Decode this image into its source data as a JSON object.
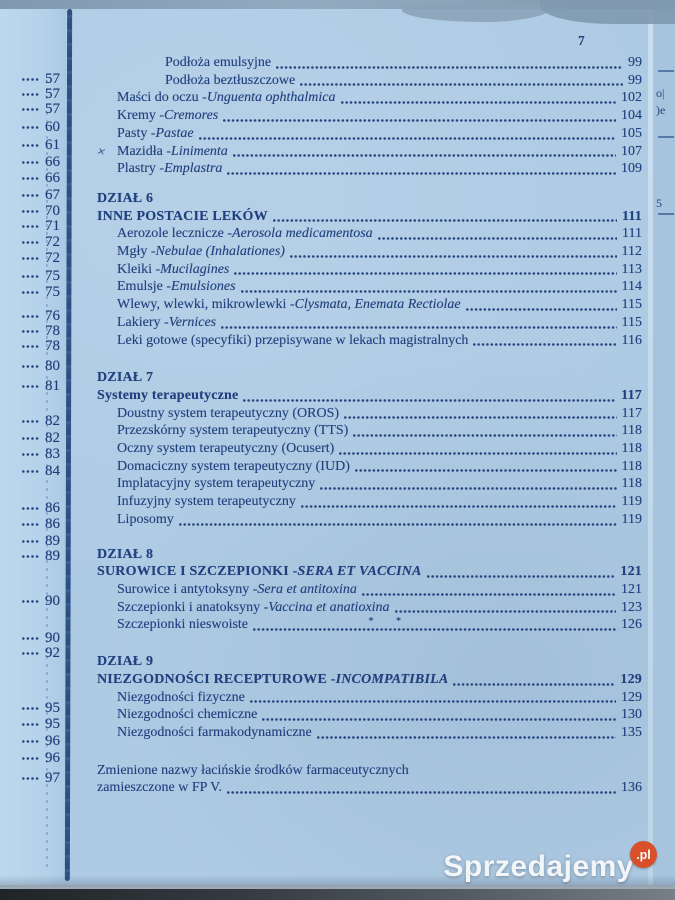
{
  "page": {
    "number": "7"
  },
  "left_page": {
    "page_numbers": [
      "57",
      "57",
      "57",
      "60",
      "61",
      "66",
      "66",
      "67",
      "70",
      "71",
      "72",
      "72",
      "75",
      "75",
      "76",
      "78",
      "78",
      "80",
      "81",
      "82",
      "82",
      "83",
      "84",
      "86",
      "86",
      "89",
      "89",
      "90",
      "90",
      "92",
      "95",
      "95",
      "96",
      "96",
      "97"
    ]
  },
  "right_page_fragments": [
    "o|",
    ")e",
    "5"
  ],
  "watermark": {
    "name": "Sprzedajemy",
    "tld": ".pl",
    "circle_color": "#d8502a"
  },
  "colors": {
    "paper": "#aecbe4",
    "ink": "#21407e",
    "binding": "#2b4c80",
    "watermark_orange": "#d8502a"
  },
  "toc": {
    "sections": [
      {
        "entries": [
          {
            "indent": 2,
            "segs": [
              {
                "t": "Podłoża emulsyjne"
              }
            ],
            "page": "99"
          },
          {
            "indent": 2,
            "segs": [
              {
                "t": "Podłoża beztłuszczowe"
              }
            ],
            "page": "99"
          },
          {
            "indent": 1,
            "segs": [
              {
                "t": "Maści do oczu - "
              },
              {
                "t": "Unguenta ophthalmica",
                "i": true
              }
            ],
            "page": "102"
          },
          {
            "indent": 1,
            "segs": [
              {
                "t": "Kremy - "
              },
              {
                "t": "Cremores",
                "i": true
              }
            ],
            "page": "104"
          },
          {
            "indent": 1,
            "segs": [
              {
                "t": "Pasty - "
              },
              {
                "t": "Pastae",
                "i": true
              }
            ],
            "page": "105"
          },
          {
            "indent": 1,
            "mark": "×",
            "segs": [
              {
                "t": "Mazidła - "
              },
              {
                "t": "Linimenta",
                "i": true
              }
            ],
            "page": "107"
          },
          {
            "indent": 1,
            "segs": [
              {
                "t": "Plastry - "
              },
              {
                "t": "Emplastra",
                "i": true
              }
            ],
            "page": "109"
          }
        ]
      },
      {
        "dzial": "DZIAŁ 6",
        "title": {
          "segs": [
            {
              "t": "INNE POSTACIE LEKÓW"
            }
          ],
          "page": "111"
        },
        "entries": [
          {
            "indent": 1,
            "segs": [
              {
                "t": "Aerozole lecznicze - "
              },
              {
                "t": "Aerosola medicamentosa",
                "i": true
              }
            ],
            "page": "111"
          },
          {
            "indent": 1,
            "segs": [
              {
                "t": "Mgły - "
              },
              {
                "t": "Nebulae (Inhalationes)",
                "i": true
              }
            ],
            "page": "112"
          },
          {
            "indent": 1,
            "segs": [
              {
                "t": "Kleiki - "
              },
              {
                "t": "Mucilagines",
                "i": true
              }
            ],
            "page": "113"
          },
          {
            "indent": 1,
            "segs": [
              {
                "t": "Emulsje - "
              },
              {
                "t": "Emulsiones",
                "i": true
              }
            ],
            "page": "114"
          },
          {
            "indent": 1,
            "segs": [
              {
                "t": "Wlewy, wlewki, mikrowlewki - "
              },
              {
                "t": "Clysmata, Enemata Rectiolae",
                "i": true
              }
            ],
            "page": "115"
          },
          {
            "indent": 1,
            "segs": [
              {
                "t": "Lakiery - "
              },
              {
                "t": "Vernices",
                "i": true
              }
            ],
            "page": "115"
          },
          {
            "indent": 1,
            "segs": [
              {
                "t": "Leki gotowe (specyfiki) przepisywane w lekach magistralnych"
              }
            ],
            "page": "116"
          }
        ]
      },
      {
        "dzial": "DZIAŁ 7",
        "title": {
          "segs": [
            {
              "t": "Systemy terapeutyczne"
            }
          ],
          "page": "117"
        },
        "entries": [
          {
            "indent": 1,
            "segs": [
              {
                "t": "Doustny system terapeutyczny (OROS)"
              }
            ],
            "page": "117"
          },
          {
            "indent": 1,
            "segs": [
              {
                "t": "Przezskórny system terapeutyczny (TTS)"
              }
            ],
            "page": "118"
          },
          {
            "indent": 1,
            "segs": [
              {
                "t": "Oczny system terapeutyczny (Ocusert)"
              }
            ],
            "page": "118"
          },
          {
            "indent": 1,
            "segs": [
              {
                "t": "Domaciczny system terapeutyczny (IUD)"
              }
            ],
            "page": "118"
          },
          {
            "indent": 1,
            "segs": [
              {
                "t": "Implatacyjny system terapeutyczny"
              }
            ],
            "page": "118"
          },
          {
            "indent": 1,
            "segs": [
              {
                "t": "Infuzyjny system terapeutyczny"
              }
            ],
            "page": "119"
          },
          {
            "indent": 1,
            "segs": [
              {
                "t": "Liposomy"
              }
            ],
            "page": "119"
          }
        ]
      },
      {
        "dzial": "DZIAŁ 8",
        "title": {
          "segs": [
            {
              "t": "SUROWICE I SZCZEPIONKI - "
            },
            {
              "t": "SERA ET VACCINA",
              "i": true
            }
          ],
          "page": "121"
        },
        "entries": [
          {
            "indent": 1,
            "segs": [
              {
                "t": "Surowice i antytoksyny - "
              },
              {
                "t": "Sera et antitoxina",
                "i": true
              }
            ],
            "page": "121"
          },
          {
            "indent": 1,
            "segs": [
              {
                "t": "Szczepionki i anatoksyny - "
              },
              {
                "t": "Vaccina et anatioxina",
                "i": true
              }
            ],
            "page": "123"
          },
          {
            "indent": 1,
            "segs": [
              {
                "t": "Szczepionki nieswoiste"
              }
            ],
            "page": "126",
            "pen_marks": "* *"
          }
        ]
      },
      {
        "dzial": "DZIAŁ 9",
        "title": {
          "segs": [
            {
              "t": "NIEZGODNOŚCI RECEPTUROWE - "
            },
            {
              "t": "INCOMPATIBILA",
              "i": true
            }
          ],
          "page": "129"
        },
        "entries": [
          {
            "indent": 1,
            "segs": [
              {
                "t": "Niezgodności fizyczne"
              }
            ],
            "page": "129"
          },
          {
            "indent": 1,
            "segs": [
              {
                "t": "Niezgodności chemiczne"
              }
            ],
            "page": "130"
          },
          {
            "indent": 1,
            "segs": [
              {
                "t": "Niezgodności farmakodynamiczne"
              }
            ],
            "page": "135"
          }
        ]
      },
      {
        "entries": [
          {
            "indent": 0,
            "segs": [
              {
                "t": "Zmienione nazwy łacińskie środków farmaceutycznych"
              }
            ],
            "page": null
          },
          {
            "indent": 0,
            "segs": [
              {
                "t": "zamieszczone w FP V. "
              }
            ],
            "page": "136"
          }
        ]
      }
    ]
  }
}
